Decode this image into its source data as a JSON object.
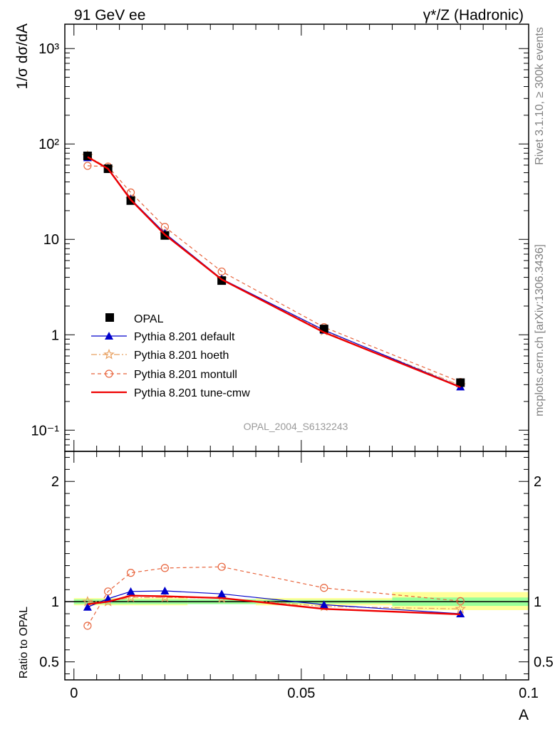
{
  "header": {
    "left": "91 GeV ee",
    "right": "γ*/Z (Hadronic)"
  },
  "side_text": {
    "rivet": "Rivet 3.1.10, ≥ 300k events",
    "mcplots": "mcplots.cern.ch [arXiv:1306.3436]"
  },
  "analysis_label": "OPAL_2004_S6132243",
  "chart_data": [
    {
      "type": "line",
      "ylabel": "1/σ dσ/dA",
      "yscale": "log",
      "ylim": [
        0.06,
        1800
      ],
      "xlim": [
        -0.002,
        0.1
      ],
      "x": [
        0.003,
        0.0075,
        0.0125,
        0.02,
        0.0325,
        0.055,
        0.085
      ],
      "ytick_labels": [
        "10⁻¹",
        "1",
        "10",
        "10²",
        "10³"
      ],
      "series": [
        {
          "name": "OPAL",
          "marker": "square",
          "color": "#000000",
          "values": [
            75,
            55,
            25.5,
            11,
            3.7,
            1.15,
            0.315
          ]
        },
        {
          "name": "Pythia 8.201 default",
          "marker": "triangle",
          "color": "#0000cc",
          "dash": "",
          "values": [
            72,
            56,
            26.5,
            11.6,
            3.85,
            1.12,
            0.285
          ]
        },
        {
          "name": "Pythia 8.201 hoeth",
          "marker": "star",
          "color": "#e8a060",
          "dash": "8,3,2,3",
          "values": [
            75,
            56,
            26.3,
            11.3,
            3.83,
            1.1,
            0.295
          ]
        },
        {
          "name": "Pythia 8.201 montull",
          "marker": "circle",
          "color": "#e8643c",
          "dash": "5,4",
          "values": [
            59,
            58,
            31,
            13.5,
            4.6,
            1.2,
            0.32
          ]
        },
        {
          "name": "Pythia 8.201 tune-cmw",
          "marker": "none",
          "color": "#ee0000",
          "dash": "",
          "values": [
            73,
            55,
            26,
            11.2,
            3.8,
            1.06,
            0.282
          ]
        }
      ]
    },
    {
      "type": "line",
      "ylabel": "Ratio to OPAL",
      "xlabel": "A",
      "ylim": [
        0.35,
        2.25
      ],
      "xlim": [
        -0.002,
        0.1
      ],
      "x": [
        0.003,
        0.0075,
        0.0125,
        0.02,
        0.0325,
        0.055,
        0.085
      ],
      "ytick_labels": [
        "0.5",
        "1",
        "2"
      ],
      "xtick_labels": [
        "0",
        "0.05",
        "0.1"
      ],
      "series": [
        {
          "name": "Pythia 8.201 default",
          "values": [
            0.955,
            1.025,
            1.085,
            1.09,
            1.065,
            0.975,
            0.9
          ]
        },
        {
          "name": "Pythia 8.201 hoeth",
          "values": [
            1.0,
            1.0,
            1.035,
            1.035,
            1.03,
            0.96,
            0.94
          ]
        },
        {
          "name": "Pythia 8.201 montull",
          "values": [
            0.8,
            1.085,
            1.24,
            1.28,
            1.29,
            1.115,
            1.005
          ]
        },
        {
          "name": "Pythia 8.201 tune-cmw",
          "values": [
            0.98,
            1.0,
            1.05,
            1.045,
            1.03,
            0.94,
            0.895
          ]
        }
      ],
      "bands": [
        {
          "x": [
            0.0,
            0.025
          ],
          "inner": [
            0.98,
            1.02
          ],
          "outer": [
            0.97,
            1.03
          ]
        },
        {
          "x": [
            0.025,
            0.04
          ],
          "inner": [
            0.98,
            1.02
          ],
          "outer": [
            0.98,
            1.02
          ]
        },
        {
          "x": [
            0.04,
            0.07
          ],
          "inner": [
            0.985,
            1.015
          ],
          "outer": [
            0.97,
            1.03
          ]
        },
        {
          "x": [
            0.07,
            0.1
          ],
          "inner": [
            0.965,
            1.035
          ],
          "outer": [
            0.93,
            1.08
          ]
        }
      ]
    }
  ]
}
